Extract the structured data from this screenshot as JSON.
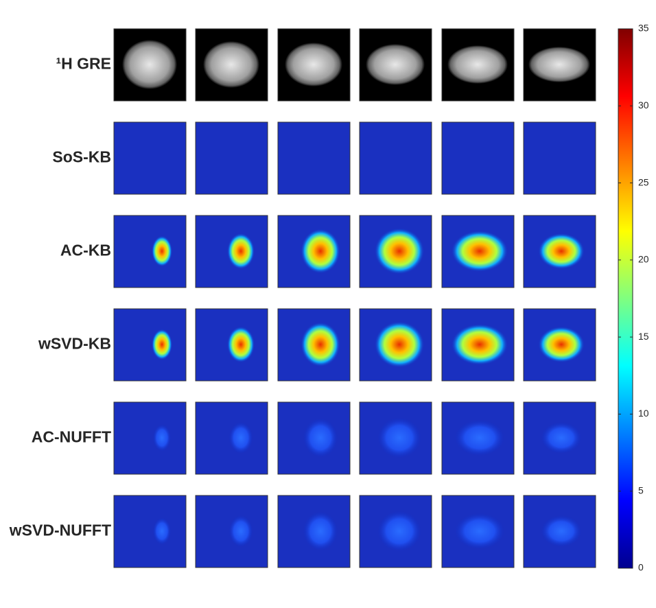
{
  "rows": [
    {
      "label": "¹H GRE"
    },
    {
      "label": "SoS-KB"
    },
    {
      "label": "AC-KB"
    },
    {
      "label": "wSVD-KB"
    },
    {
      "label": "AC-NUFFT"
    },
    {
      "label": "wSVD-NUFFT"
    }
  ],
  "colorbar": {
    "lim": [
      0,
      35
    ],
    "ticks": [
      0,
      5,
      10,
      15,
      20,
      25,
      30,
      35
    ]
  }
}
